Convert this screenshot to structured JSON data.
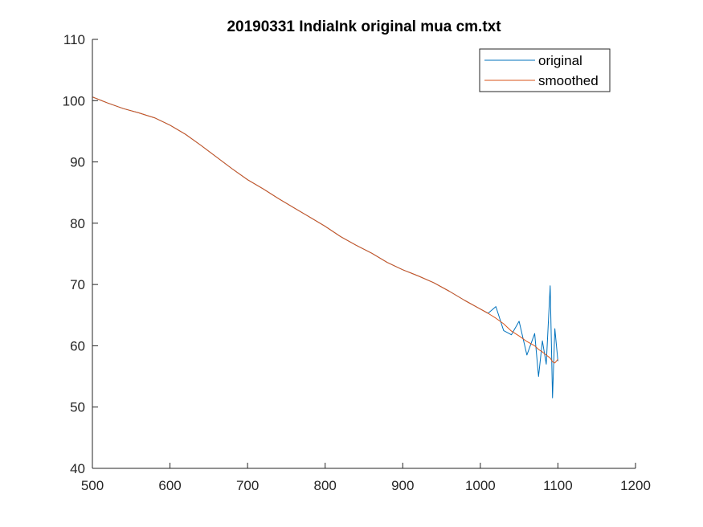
{
  "chart_data": {
    "type": "line",
    "title": "20190331 IndiaInk original mua cm.txt",
    "xlabel": "",
    "ylabel": "",
    "xlim": [
      500,
      1200
    ],
    "ylim": [
      40,
      110
    ],
    "xticks": [
      "500",
      "600",
      "700",
      "800",
      "900",
      "1000",
      "1100",
      "1200"
    ],
    "yticks": [
      "40",
      "50",
      "60",
      "70",
      "80",
      "90",
      "100",
      "110"
    ],
    "grid": false,
    "legend_position": "top-right",
    "x": [
      500,
      520,
      540,
      560,
      570,
      580,
      600,
      620,
      640,
      660,
      680,
      700,
      720,
      740,
      760,
      780,
      800,
      820,
      840,
      860,
      880,
      900,
      920,
      940,
      960,
      980,
      1000,
      1010,
      1020,
      1030,
      1040,
      1050,
      1060,
      1070,
      1075,
      1080,
      1085,
      1090,
      1093,
      1096,
      1100
    ],
    "series": [
      {
        "name": "original",
        "color": "#0072BD",
        "values": [
          100.6,
          99.6,
          98.7,
          98.0,
          97.6,
          97.2,
          96.0,
          94.5,
          92.7,
          90.8,
          88.9,
          87.1,
          85.6,
          84.0,
          82.5,
          81.0,
          79.5,
          77.8,
          76.4,
          75.1,
          73.6,
          72.4,
          71.4,
          70.3,
          68.9,
          67.4,
          66.0,
          65.3,
          66.4,
          62.5,
          61.8,
          64.0,
          58.5,
          62.0,
          55.0,
          60.8,
          57.0,
          69.8,
          51.5,
          62.8,
          57.5
        ]
      },
      {
        "name": "smoothed",
        "color": "#D95319",
        "values": [
          100.6,
          99.6,
          98.7,
          98.0,
          97.6,
          97.2,
          96.0,
          94.5,
          92.7,
          90.8,
          88.9,
          87.1,
          85.6,
          84.0,
          82.5,
          81.0,
          79.5,
          77.8,
          76.4,
          75.1,
          73.6,
          72.4,
          71.4,
          70.3,
          68.9,
          67.4,
          66.0,
          65.3,
          64.5,
          63.6,
          62.4,
          61.6,
          60.7,
          60.0,
          59.4,
          59.0,
          58.5,
          58.0,
          57.4,
          57.2,
          57.8
        ]
      }
    ]
  }
}
